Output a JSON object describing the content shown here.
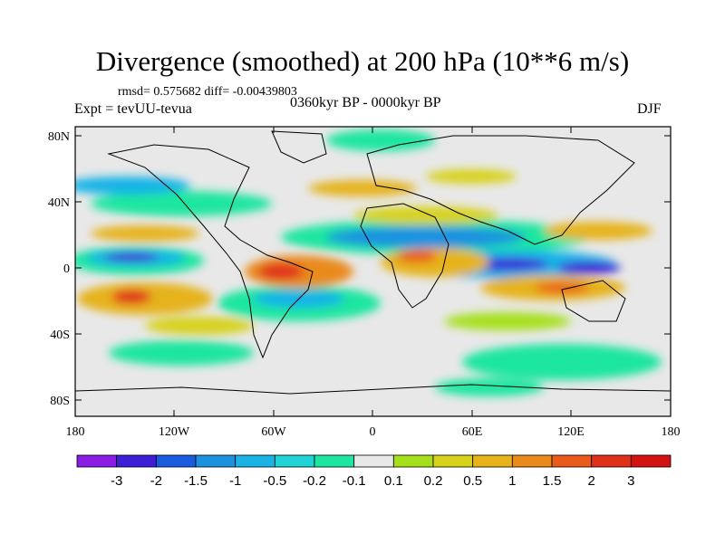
{
  "title": "Divergence (smoothed) at 200 hPa (10**6 m/s)",
  "stats": {
    "rmsd_label": "rmsd=",
    "rmsd": "0.575682",
    "diff_label": "diff=",
    "diff": "-0.00439803"
  },
  "experiment": "Expt = tevUU-tevua",
  "period": "0360kyr BP - 0000kyr BP",
  "season": "DJF",
  "axes": {
    "lat_ticks": [
      "80N",
      "40N",
      "0",
      "40S",
      "80S"
    ],
    "lon_ticks": [
      "180",
      "120W",
      "60W",
      "0",
      "60E",
      "120E",
      "180"
    ]
  },
  "colorbar": {
    "labels": [
      "-3",
      "-2",
      "-1.5",
      "-1",
      "-0.5",
      "-0.2",
      "-0.1",
      "0.1",
      "0.2",
      "0.5",
      "1",
      "1.5",
      "2",
      "3"
    ],
    "colors": [
      "#8a1ce6",
      "#3c1fd6",
      "#1a5ce0",
      "#1a92e0",
      "#19b3e6",
      "#20d3d6",
      "#1ee6a0",
      "#e8e8e8",
      "#a6e01a",
      "#d7d21a",
      "#e6b31a",
      "#ea8a1a",
      "#ea5a1a",
      "#e0301a",
      "#d41212"
    ]
  }
}
